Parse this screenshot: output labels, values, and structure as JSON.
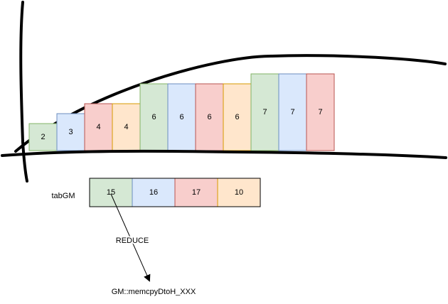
{
  "palette": {
    "green": {
      "fill": "#d5e8d4",
      "stroke": "#82b366"
    },
    "blue": {
      "fill": "#dae8fc",
      "stroke": "#6c8ebf"
    },
    "red": {
      "fill": "#f8cecc",
      "stroke": "#b85450"
    },
    "orange": {
      "fill": "#ffe6cc",
      "stroke": "#d79b00"
    },
    "line": "#000000"
  },
  "bars": [
    {
      "label": "2",
      "value": 2,
      "color": "green"
    },
    {
      "label": "3",
      "value": 3,
      "color": "blue"
    },
    {
      "label": "4",
      "value": 4,
      "color": "red"
    },
    {
      "label": "4",
      "value": 4,
      "color": "orange"
    },
    {
      "label": "6",
      "value": 6,
      "color": "green"
    },
    {
      "label": "6",
      "value": 6,
      "color": "blue"
    },
    {
      "label": "6",
      "value": 6,
      "color": "red"
    },
    {
      "label": "6",
      "value": 6,
      "color": "orange"
    },
    {
      "label": "7",
      "value": 7,
      "color": "green"
    },
    {
      "label": "7",
      "value": 7,
      "color": "blue"
    },
    {
      "label": "7",
      "value": 7,
      "color": "red"
    }
  ],
  "tab": {
    "label": "tabGM",
    "cells": [
      {
        "label": "15",
        "color": "green"
      },
      {
        "label": "16",
        "color": "blue"
      },
      {
        "label": "17",
        "color": "red"
      },
      {
        "label": "10",
        "color": "orange"
      }
    ]
  },
  "reduce_label": "REDUCE",
  "target_label": "GM::memcpyDtoH_XXX"
}
